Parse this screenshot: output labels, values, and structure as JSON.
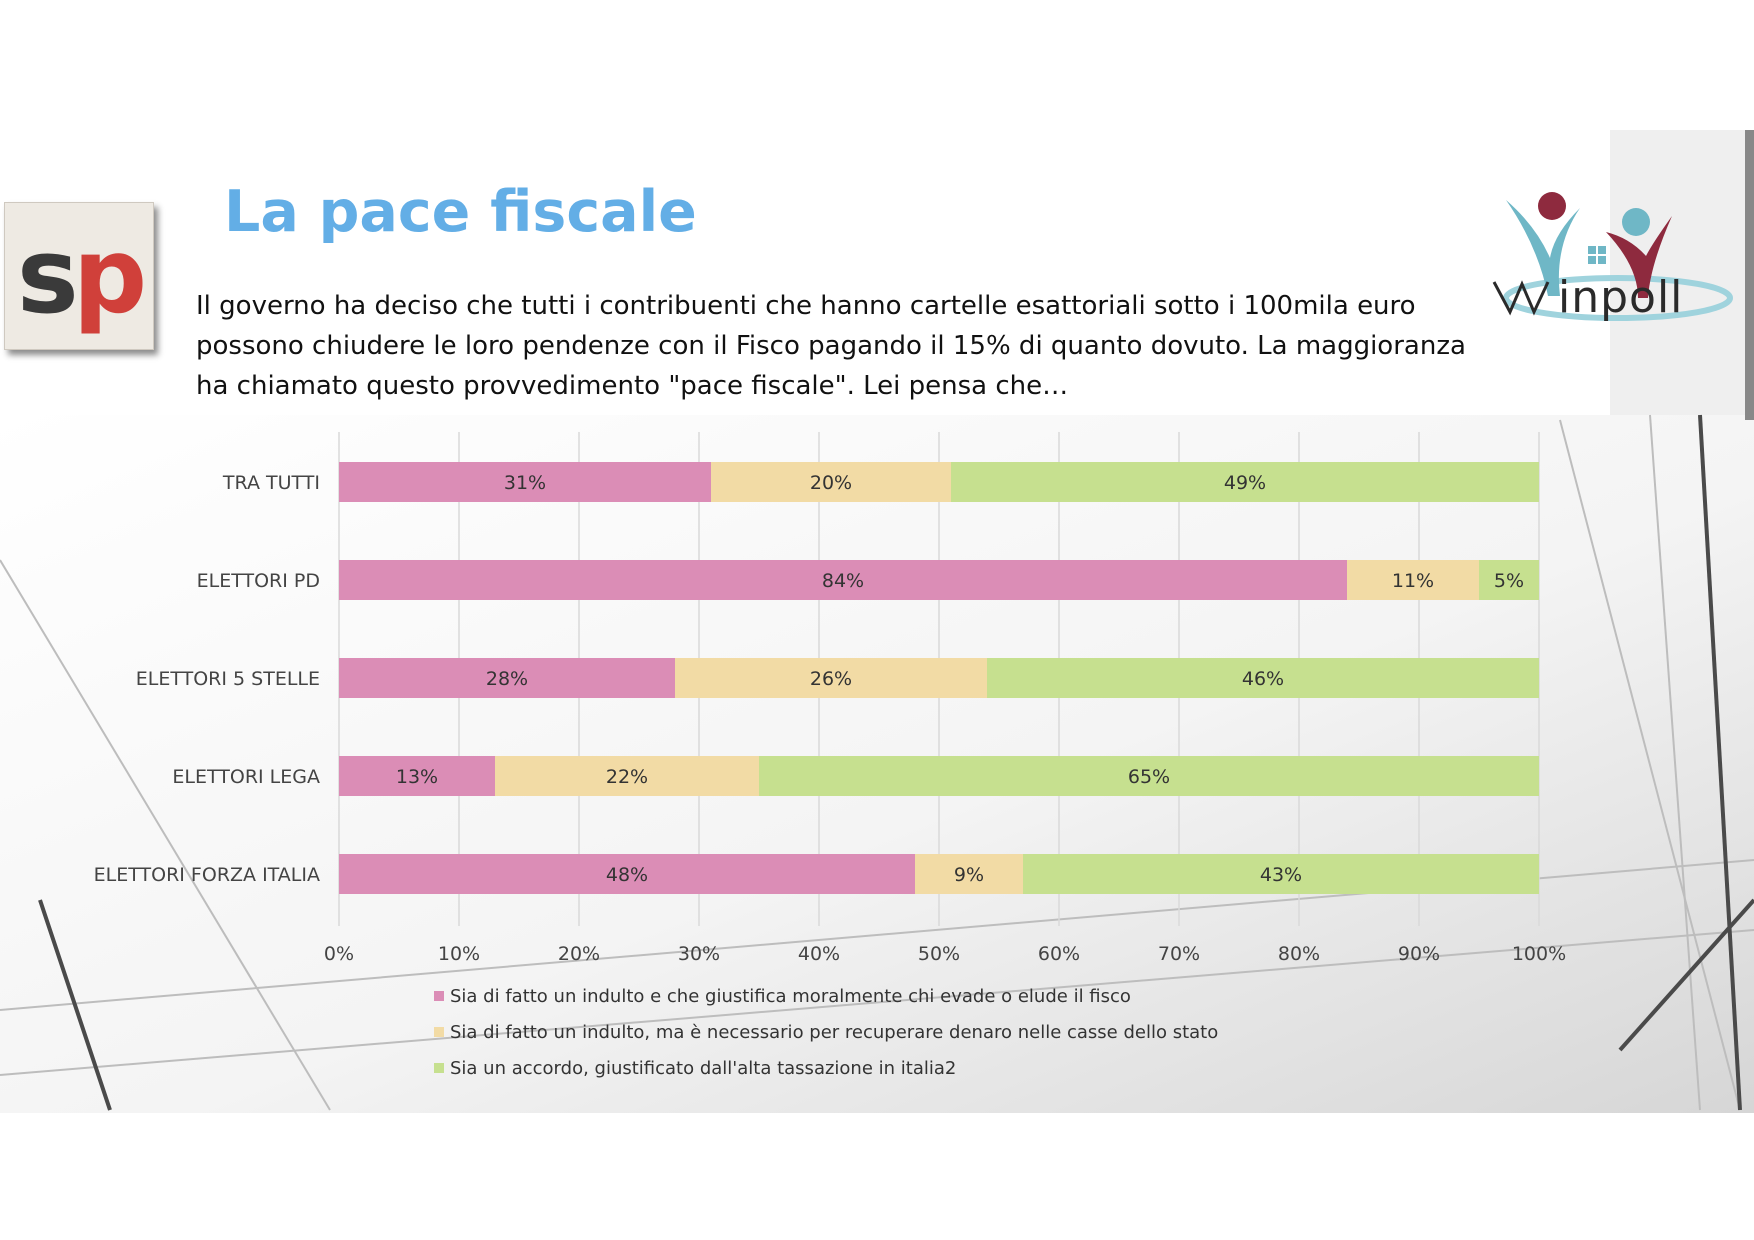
{
  "page": {
    "title": "La pace fiscale",
    "question": "Il governo ha deciso che tutti i contribuenti che hanno cartelle esattoriali sotto i 100mila euro possono chiudere le loro pendenze con il Fisco pagando il 15% di quanto dovuto. La maggioranza ha chiamato questo provvedimento \"pace fiscale\". Lei pensa che…",
    "logo_left_text": "sp",
    "logo_right_text": "winpoll"
  },
  "chart_data": {
    "type": "bar",
    "orientation": "horizontal",
    "stacked": true,
    "categories": [
      "TRA TUTTI",
      "ELETTORI PD",
      "ELETTORI 5 STELLE",
      "ELETTORI LEGA",
      "ELETTORI FORZA ITALIA"
    ],
    "series": [
      {
        "name": "Sia di fatto un indulto e che giustifica moralmente chi evade o elude il fisco",
        "values": [
          31,
          84,
          28,
          13,
          48
        ],
        "color": "#db8db6"
      },
      {
        "name": "Sia di fatto un indulto, ma è necessario per recuperare denaro nelle casse dello stato",
        "values": [
          20,
          11,
          26,
          22,
          9
        ],
        "color": "#f2dba5"
      },
      {
        "name": "Sia un accordo, giustificato dall'alta tassazione in italia2",
        "values": [
          49,
          5,
          46,
          65,
          43
        ],
        "color": "#c6e08f"
      }
    ],
    "xlim": [
      0,
      100
    ],
    "x_ticks": [
      "0%",
      "10%",
      "20%",
      "30%",
      "40%",
      "50%",
      "60%",
      "70%",
      "80%",
      "90%",
      "100%"
    ],
    "value_suffix": "%",
    "grid": true,
    "legend_position": "bottom"
  }
}
